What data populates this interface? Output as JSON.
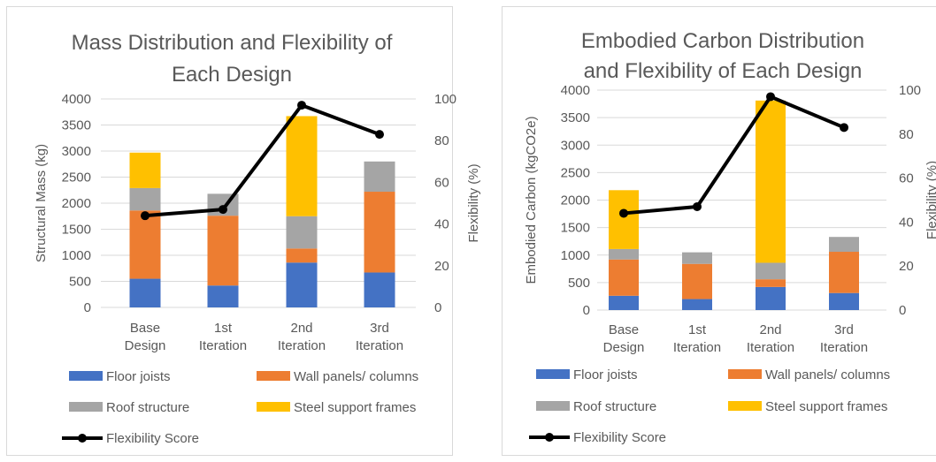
{
  "colors": {
    "floor": "#4472c4",
    "wall": "#ed7d31",
    "roof": "#a5a5a5",
    "steel": "#ffc000",
    "flex": "#000000",
    "grid": "#d9d9d9",
    "text": "#595959"
  },
  "legend": {
    "floor": "Floor joists",
    "wall": "Wall panels/ columns",
    "roof": "Roof structure",
    "steel": "Steel support frames",
    "flex": "Flexibility Score"
  },
  "chart_data": [
    {
      "type": "bar",
      "stacked": true,
      "title": "Mass Distribution and Flexibility of Each Design",
      "title_lines": [
        "Mass Distribution and Flexibility of",
        "Each Design"
      ],
      "ylabel": "Structural Mass (kg)",
      "y2label": "Flexibility (%)",
      "ylim": [
        0,
        4000
      ],
      "yticks": [
        "0",
        "500",
        "1000",
        "1500",
        "2000",
        "2500",
        "3000",
        "3500",
        "4000"
      ],
      "y2lim": [
        0,
        100
      ],
      "y2ticks": [
        "0",
        "20",
        "40",
        "60",
        "80",
        "100"
      ],
      "grid": true,
      "legend_position": "bottom",
      "categories": [
        [
          "Base",
          "Design"
        ],
        [
          "1st",
          "Iteration"
        ],
        [
          "2nd",
          "Iteration"
        ],
        [
          "3rd",
          "Iteration"
        ]
      ],
      "series": [
        {
          "name": "Floor joists",
          "key": "floor",
          "values": [
            550,
            420,
            860,
            670
          ]
        },
        {
          "name": "Wall panels/ columns",
          "key": "wall",
          "values": [
            1310,
            1340,
            270,
            1550
          ]
        },
        {
          "name": "Roof structure",
          "key": "roof",
          "values": [
            430,
            420,
            620,
            580
          ]
        },
        {
          "name": "Steel support frames",
          "key": "steel",
          "values": [
            680,
            0,
            1920,
            0
          ]
        }
      ],
      "line": {
        "name": "Flexibility Score",
        "key": "flex",
        "axis": "secondary",
        "values": [
          44,
          47,
          97,
          83
        ]
      }
    },
    {
      "type": "bar",
      "stacked": true,
      "title": "Embodied Carbon Distribution and Flexibility of Each Design",
      "title_lines": [
        "Embodied Carbon Distribution",
        "and Flexibility of Each Design"
      ],
      "ylabel": "Embodied Carbon (kgCO2e)",
      "y2label": "Flexibility (%)",
      "ylim": [
        0,
        4000
      ],
      "yticks": [
        "0",
        "500",
        "1000",
        "1500",
        "2000",
        "2500",
        "3000",
        "3500",
        "4000"
      ],
      "y2lim": [
        0,
        100
      ],
      "y2ticks": [
        "0",
        "20",
        "40",
        "60",
        "80",
        "100"
      ],
      "grid": true,
      "legend_position": "bottom",
      "categories": [
        [
          "Base",
          "Design"
        ],
        [
          "1st",
          "Iteration"
        ],
        [
          "2nd",
          "Iteration"
        ],
        [
          "3rd",
          "Iteration"
        ]
      ],
      "series": [
        {
          "name": "Floor joists",
          "key": "floor",
          "values": [
            260,
            200,
            420,
            310
          ]
        },
        {
          "name": "Wall panels/ columns",
          "key": "wall",
          "values": [
            660,
            640,
            140,
            750
          ]
        },
        {
          "name": "Roof structure",
          "key": "roof",
          "values": [
            190,
            210,
            300,
            270
          ]
        },
        {
          "name": "Steel support frames",
          "key": "steel",
          "values": [
            1070,
            0,
            2950,
            0
          ]
        }
      ],
      "line": {
        "name": "Flexibility Score",
        "key": "flex",
        "axis": "secondary",
        "values": [
          44,
          47,
          97,
          83
        ]
      }
    }
  ]
}
